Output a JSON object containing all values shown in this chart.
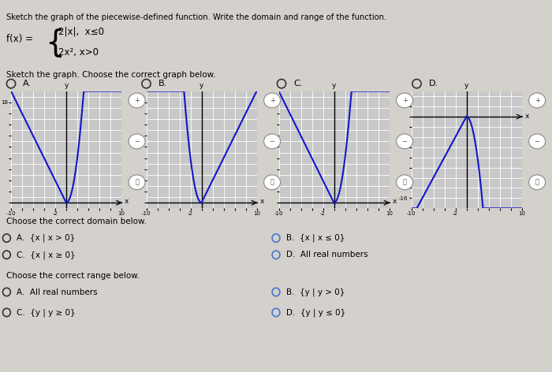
{
  "title_main": "Sketch the graph of the piecewise-defined function. Write the domain and range of the function.",
  "piece1": "2|x|,  x≤0",
  "piece2": "2x², x>0",
  "subtitle": "Sketch the graph. Choose the correct graph below.",
  "option_labels": [
    "A.",
    "B.",
    "C.",
    "D."
  ],
  "domain_title": "Choose the correct domain below.",
  "domain_A": "A.  {x | x > 0}",
  "domain_B": "B.  {x | x ≤ 0}",
  "domain_C": "C.  {x | x ≥ 0}",
  "domain_D": "D.  All real numbers",
  "range_title": "Choose the correct range below.",
  "range_A": "A.  All real numbers",
  "range_B": "B.  {y | y > 0}",
  "range_C": "C.  {y | y ≥ 0}",
  "range_D": "D.  {y | y ≤ 0}",
  "curve_color": "#1515cc",
  "radio_color_black": "#333333",
  "radio_color_blue": "#4477cc",
  "bg_color": "#c8c8c8",
  "graph_configs": [
    {
      "type": "A",
      "xlim": [
        -10,
        10
      ],
      "ylim": [
        -1,
        20
      ],
      "xticks": [
        -10,
        -2,
        10
      ],
      "yticks": [
        18
      ]
    },
    {
      "type": "B",
      "xlim": [
        -10,
        10
      ],
      "ylim": [
        -1,
        20
      ],
      "xticks": [
        -10,
        -2,
        10
      ],
      "yticks": [
        18
      ]
    },
    {
      "type": "C",
      "xlim": [
        -10,
        10
      ],
      "ylim": [
        -1,
        20
      ],
      "xticks": [
        -10,
        -2,
        10
      ],
      "yticks": [
        18
      ]
    },
    {
      "type": "D",
      "xlim": [
        -10,
        10
      ],
      "ylim": [
        -18,
        5
      ],
      "xticks": [
        -10,
        -2,
        10
      ],
      "yticks": [
        4,
        -16
      ]
    }
  ]
}
